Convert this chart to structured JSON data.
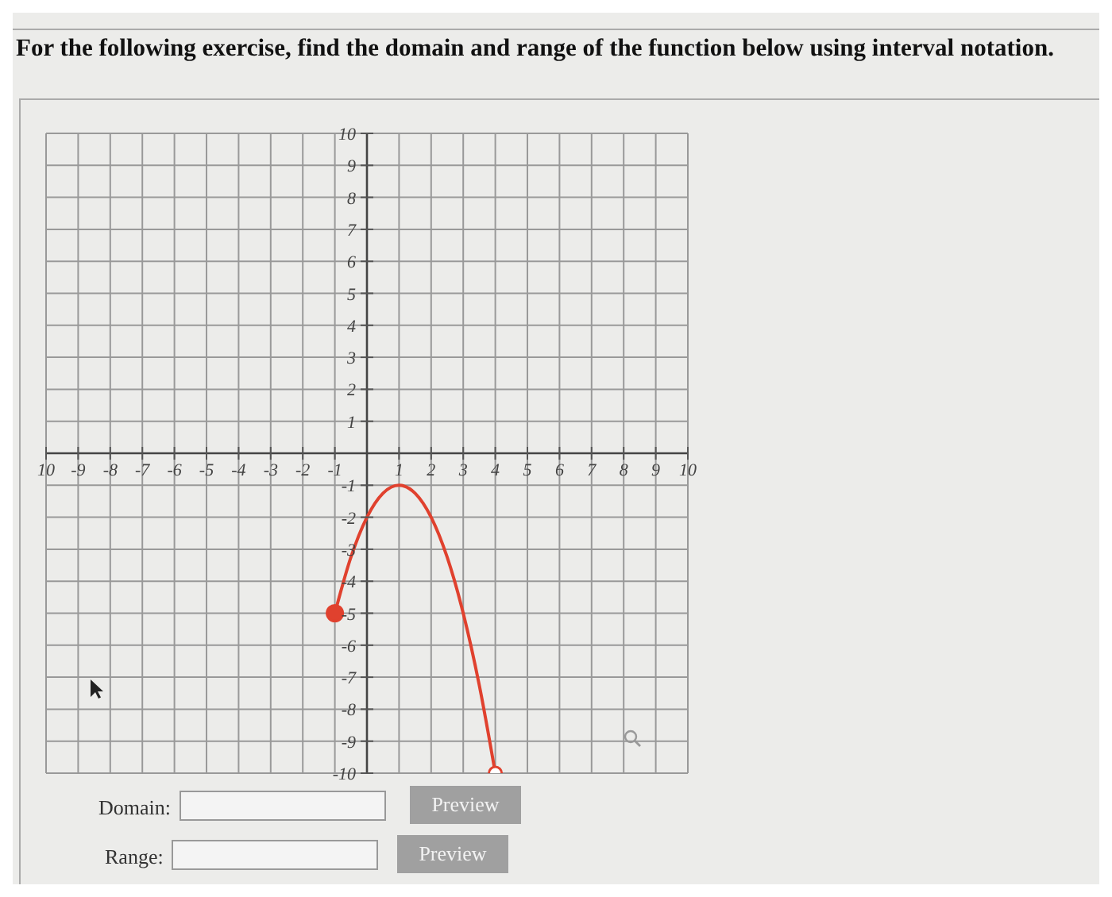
{
  "chart_data": {
    "type": "line",
    "title": "For the following exercise, find the domain and range of the function below using interval notation.",
    "x": [
      -1,
      -0.5,
      0,
      0.5,
      1,
      1.5,
      2,
      2.5,
      3,
      3.5,
      4
    ],
    "series": [
      {
        "color": "#e0412e",
        "values": [
          -5,
          -3.25,
          -2,
          -1.25,
          -1,
          -1.25,
          -2,
          -3.25,
          -5,
          -7.25,
          -10
        ]
      },
      {
        "type": "scatter",
        "color": "#e0412e",
        "x": [
          -1,
          4
        ],
        "values": [
          -5,
          -10
        ],
        "marker": "circle"
      }
    ],
    "xlim": [
      -10,
      10
    ],
    "ylim": [
      -10,
      10
    ],
    "xticks": [
      {
        "value": -10,
        "label": "10"
      },
      -9,
      -8,
      -7,
      -6,
      -5,
      -4,
      -3,
      -2,
      -1,
      1,
      2,
      3,
      4,
      5,
      6,
      7,
      8,
      9,
      10
    ],
    "yticks": [
      -10,
      -9,
      -8,
      -7,
      -6,
      -5,
      -4,
      -3,
      -2,
      -1,
      1,
      2,
      3,
      4,
      5,
      6,
      7,
      8,
      9,
      10
    ],
    "grid": true,
    "annotations": [
      "Domain:",
      "Range:",
      "Preview",
      "Preview"
    ]
  }
}
